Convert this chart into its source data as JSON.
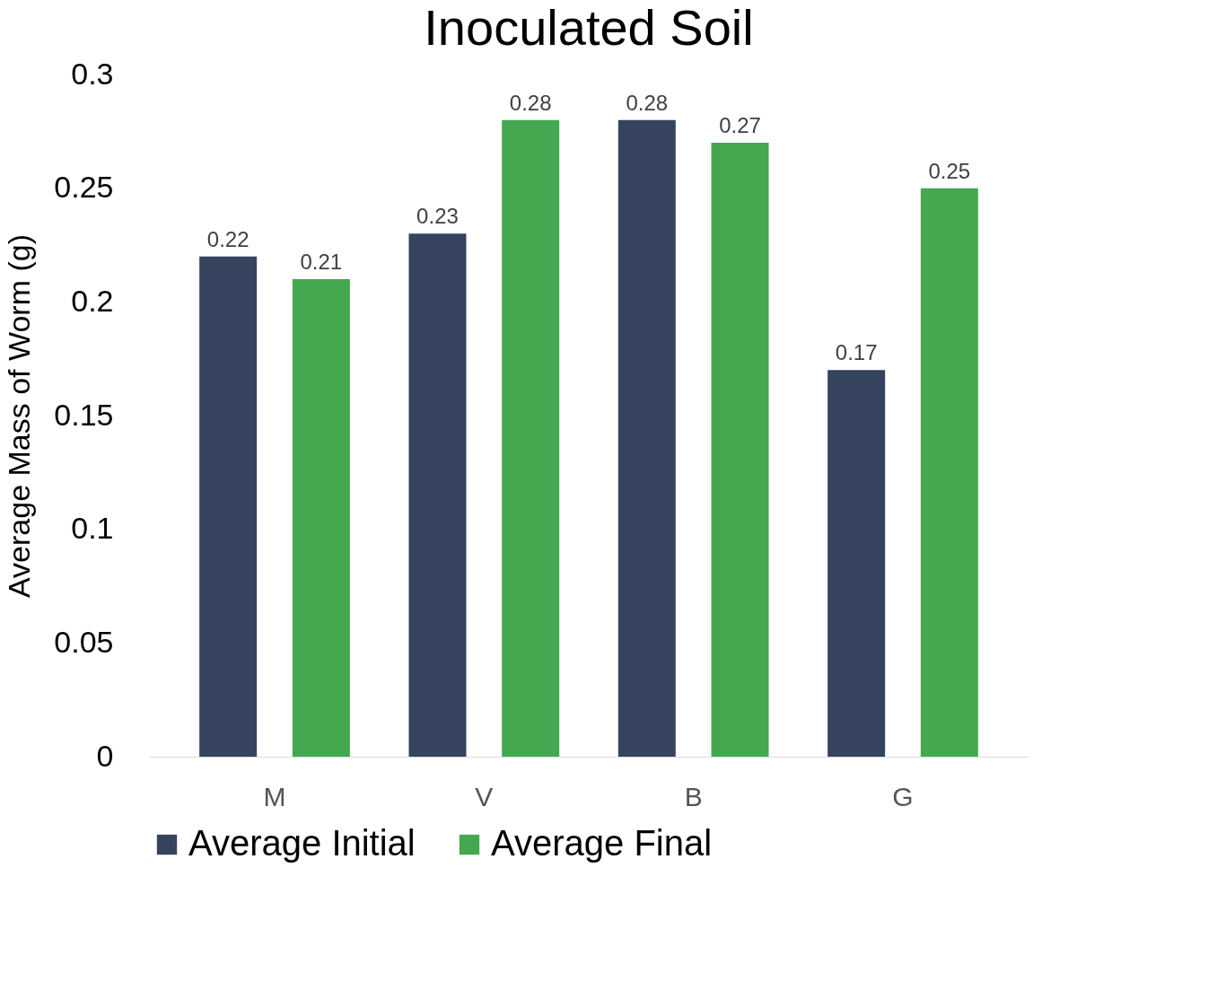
{
  "chart_data": {
    "type": "bar",
    "title": "Inoculated Soil",
    "ylabel": "Average Mass of Worm (g)",
    "categories": [
      "M",
      "V",
      "B",
      "G"
    ],
    "series": [
      {
        "name": "Average Initial",
        "color": "#36435f",
        "values": [
          0.22,
          0.23,
          0.28,
          0.17
        ]
      },
      {
        "name": "Average Final",
        "color": "#44a851",
        "values": [
          0.21,
          0.28,
          0.27,
          0.25
        ]
      }
    ],
    "ylim": [
      0,
      0.3
    ],
    "yticks": [
      0,
      0.05,
      0.1,
      0.15,
      0.2,
      0.25,
      0.3
    ],
    "grid": false,
    "legend": "bottom",
    "data_labels": true
  }
}
